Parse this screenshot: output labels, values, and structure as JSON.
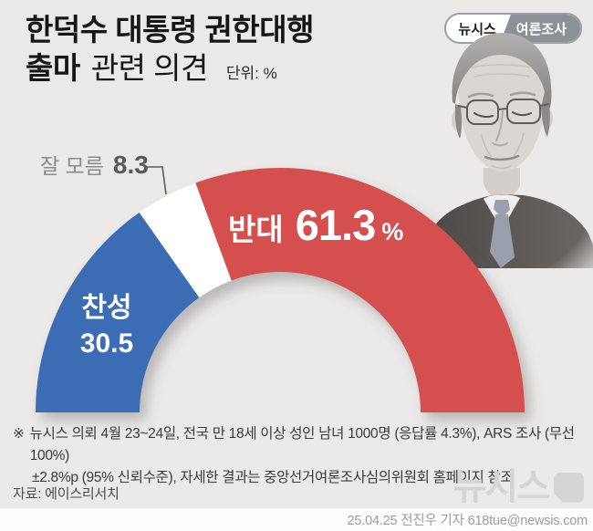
{
  "colors": {
    "background": "#ebeae8",
    "approve_blue": "#3a6cb4",
    "oppose_red": "#d5504f",
    "unknown_white": "#ffffff",
    "badge_gray": "#8b9196",
    "watermark_gray": "#d6d5d3",
    "leader_line": "#5a5a5a"
  },
  "header": {
    "title_line1": "한덕수 대통령 권한대행",
    "title_line2_bold": "출마",
    "title_line2_rest": "관련 의견",
    "unit_note": "단위: %",
    "badge": {
      "brand": "뉴시스",
      "category": "여론조사"
    }
  },
  "chart_data": {
    "type": "pie",
    "variant": "semi-donut-gauge",
    "title": "한덕수 대통령 권한대행 출마 관련 의견",
    "unit": "%",
    "start_angle_deg": 180,
    "end_angle_deg": 0,
    "segments": [
      {
        "name": "찬성",
        "value": 30.5,
        "color": "#3a6cb4",
        "label_color": "#ffffff"
      },
      {
        "name": "잘 모름",
        "value": 8.3,
        "color": "#ffffff",
        "label_color": "#8b8b8b"
      },
      {
        "name": "반대",
        "value": 61.3,
        "color": "#d5504f",
        "label_color": "#ffffff"
      }
    ]
  },
  "footnote": {
    "marker": "※",
    "lines": [
      "뉴시스 의뢰 4월 23~24일, 전국 만 18세 이상 성인 남녀 1000명 (응답률 4.3%), ARS 조사 (무선 100%)",
      "±2.8%p (95% 신뢰수준), 자세한 결과는 중앙선거여론조사심의위원회 홈페이지 참조"
    ],
    "source": "자료: 에이스리서치"
  },
  "footer": {
    "watermark": "뉴시스",
    "credit": "25.04.25 전진우 기자 618tue@newsis.com"
  }
}
